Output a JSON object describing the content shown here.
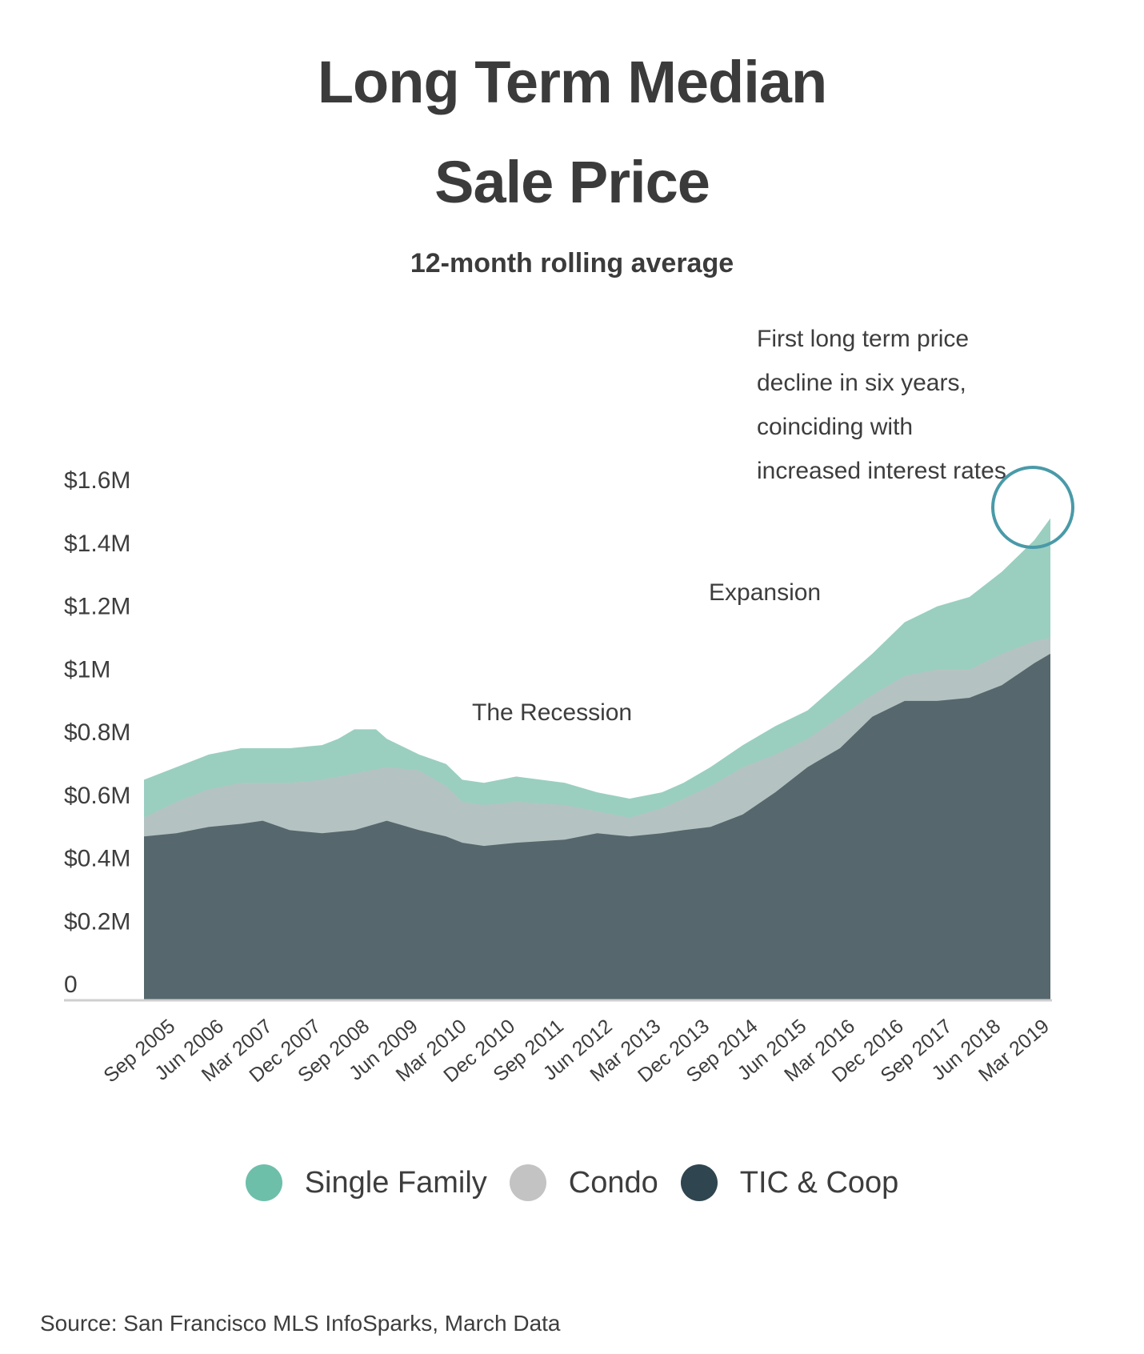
{
  "header": {
    "title_line1": "Long Term Median",
    "title_line2": "Sale Price",
    "subtitle": "12-month rolling average"
  },
  "annotations": {
    "recession": "The Recession",
    "expansion": "Expansion",
    "note_lines": [
      "First long term price",
      "decline in six years,",
      "coinciding with",
      "increased interest rates"
    ]
  },
  "source": "Source:  San Francisco MLS InfoSparks, March Data",
  "colors": {
    "single_family": "#9acfc0",
    "condo": "#b4c3c1",
    "tic_coop": "#56676d",
    "highlight_circle": "#4a9aa8",
    "legend_single_family": "#6dbfaa",
    "legend_condo": "#c3c3c3",
    "legend_tic_coop": "#2f4550"
  },
  "chart_data": {
    "type": "area",
    "title": "Long Term Median Sale Price",
    "subtitle": "12-month rolling average",
    "x_start": "Mar 2005",
    "x_end": "Mar 2019",
    "x_ticks": [
      "Sep 2005",
      "Jun 2006",
      "Mar 2007",
      "Dec 2007",
      "Sep 2008",
      "Jun 2009",
      "Mar 2010",
      "Dec 2010",
      "Sep 2011",
      "Jun 2012",
      "Mar 2013",
      "Dec 2013",
      "Sep 2014",
      "Jun 2015",
      "Mar 2016",
      "Dec 2016",
      "Sep 2017",
      "Jun 2018",
      "Mar 2019"
    ],
    "y_ticks": [
      "0",
      "$0.2M",
      "$0.4M",
      "$0.6M",
      "$0.8M",
      "$1M",
      "$1.2M",
      "$1.4M",
      "$1.6M"
    ],
    "ylim": [
      0,
      1.6
    ],
    "y_unit": "$M",
    "grid": false,
    "legend_position": "bottom",
    "series": [
      {
        "name": "Single Family",
        "points": [
          [
            "Mar 2005",
            0.7
          ],
          [
            "Sep 2005",
            0.74
          ],
          [
            "Mar 2006",
            0.78
          ],
          [
            "Sep 2006",
            0.8
          ],
          [
            "Jun 2007",
            0.8
          ],
          [
            "Dec 2007",
            0.81
          ],
          [
            "Mar 2008",
            0.83
          ],
          [
            "Jun 2008",
            0.86
          ],
          [
            "Oct 2008",
            0.86
          ],
          [
            "Dec 2008",
            0.83
          ],
          [
            "Jun 2009",
            0.78
          ],
          [
            "Nov 2009",
            0.75
          ],
          [
            "Feb 2010",
            0.7
          ],
          [
            "Jun 2010",
            0.69
          ],
          [
            "Dec 2010",
            0.71
          ],
          [
            "Sep 2011",
            0.69
          ],
          [
            "Mar 2012",
            0.66
          ],
          [
            "Sep 2012",
            0.64
          ],
          [
            "Mar 2013",
            0.66
          ],
          [
            "Jul 2013",
            0.69
          ],
          [
            "Dec 2013",
            0.74
          ],
          [
            "Jun 2014",
            0.81
          ],
          [
            "Dec 2014",
            0.87
          ],
          [
            "Jun 2015",
            0.92
          ],
          [
            "Dec 2015",
            1.01
          ],
          [
            "Jun 2016",
            1.1
          ],
          [
            "Dec 2016",
            1.2
          ],
          [
            "Jun 2017",
            1.25
          ],
          [
            "Dec 2017",
            1.28
          ],
          [
            "Jun 2018",
            1.36
          ],
          [
            "Dec 2018",
            1.46
          ],
          [
            "Mar 2019",
            1.53
          ]
        ]
      },
      {
        "name": "Condo",
        "points": [
          [
            "Mar 2005",
            0.58
          ],
          [
            "Sep 2005",
            0.63
          ],
          [
            "Mar 2006",
            0.67
          ],
          [
            "Sep 2006",
            0.69
          ],
          [
            "Jun 2007",
            0.69
          ],
          [
            "Dec 2007",
            0.7
          ],
          [
            "Jun 2008",
            0.72
          ],
          [
            "Dec 2008",
            0.74
          ],
          [
            "Jun 2009",
            0.73
          ],
          [
            "Nov 2009",
            0.68
          ],
          [
            "Feb 2010",
            0.63
          ],
          [
            "Jun 2010",
            0.62
          ],
          [
            "Dec 2010",
            0.63
          ],
          [
            "Sep 2011",
            0.62
          ],
          [
            "Mar 2012",
            0.6
          ],
          [
            "Sep 2012",
            0.58
          ],
          [
            "Mar 2013",
            0.61
          ],
          [
            "Jul 2013",
            0.64
          ],
          [
            "Dec 2013",
            0.68
          ],
          [
            "Jun 2014",
            0.74
          ],
          [
            "Dec 2014",
            0.78
          ],
          [
            "Jun 2015",
            0.83
          ],
          [
            "Dec 2015",
            0.9
          ],
          [
            "Jun 2016",
            0.97
          ],
          [
            "Dec 2016",
            1.03
          ],
          [
            "Jun 2017",
            1.05
          ],
          [
            "Dec 2017",
            1.05
          ],
          [
            "Jun 2018",
            1.1
          ],
          [
            "Dec 2018",
            1.14
          ],
          [
            "Mar 2019",
            1.15
          ]
        ]
      },
      {
        "name": "TIC & Coop",
        "points": [
          [
            "Mar 2005",
            0.52
          ],
          [
            "Sep 2005",
            0.53
          ],
          [
            "Mar 2006",
            0.55
          ],
          [
            "Sep 2006",
            0.56
          ],
          [
            "Jan 2007",
            0.57
          ],
          [
            "Jun 2007",
            0.54
          ],
          [
            "Dec 2007",
            0.53
          ],
          [
            "Jun 2008",
            0.54
          ],
          [
            "Dec 2008",
            0.57
          ],
          [
            "Jun 2009",
            0.54
          ],
          [
            "Nov 2009",
            0.52
          ],
          [
            "Feb 2010",
            0.5
          ],
          [
            "Jun 2010",
            0.49
          ],
          [
            "Dec 2010",
            0.5
          ],
          [
            "Sep 2011",
            0.51
          ],
          [
            "Mar 2012",
            0.53
          ],
          [
            "Sep 2012",
            0.52
          ],
          [
            "Mar 2013",
            0.53
          ],
          [
            "Jul 2013",
            0.54
          ],
          [
            "Dec 2013",
            0.55
          ],
          [
            "Jun 2014",
            0.59
          ],
          [
            "Dec 2014",
            0.66
          ],
          [
            "Jun 2015",
            0.74
          ],
          [
            "Dec 2015",
            0.8
          ],
          [
            "Jun 2016",
            0.9
          ],
          [
            "Dec 2016",
            0.95
          ],
          [
            "Jun 2017",
            0.95
          ],
          [
            "Dec 2017",
            0.96
          ],
          [
            "Jun 2018",
            1.0
          ],
          [
            "Dec 2018",
            1.07
          ],
          [
            "Mar 2019",
            1.1
          ]
        ]
      }
    ],
    "annotations": [
      {
        "text": "The Recession",
        "x": "Dec 2010",
        "y": 0.92
      },
      {
        "text": "Expansion",
        "x": "Sep 2015",
        "y": 1.32
      },
      {
        "text": "First long term price decline in six years, coinciding with increased interest rates",
        "x": "Dec 2018",
        "y": 1.53
      }
    ]
  }
}
